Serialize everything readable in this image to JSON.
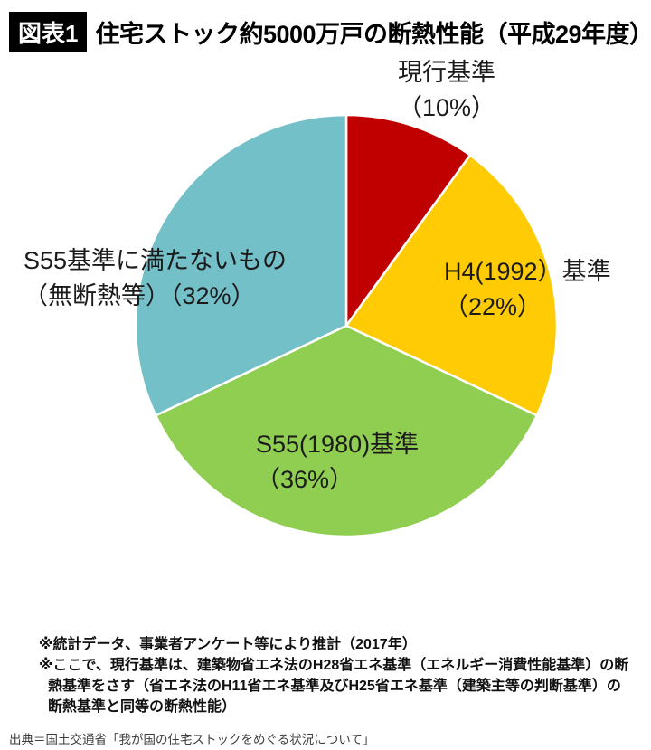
{
  "header": {
    "figure_label": "図表1",
    "title": "住宅ストック約5000万戸の断熱性能（平成29年度）"
  },
  "chart_data": {
    "type": "pie",
    "title": "住宅ストック約5000万戸の断熱性能（平成29年度）",
    "unit": "percent",
    "total_percent": 100,
    "start_angle_deg": 0,
    "direction": "clockwise",
    "slices": [
      {
        "id": "current-standard",
        "label": "現行基準",
        "value": 10,
        "color": "#c00000",
        "label_lines": [
          "現行基準",
          "（10%）"
        ]
      },
      {
        "id": "h4-1992-standard",
        "label": "H4(1992）基準",
        "value": 22,
        "color": "#ffcb05",
        "label_lines": [
          "H4(1992）基準",
          "（22%）"
        ]
      },
      {
        "id": "s55-1980-standard",
        "label": "S55(1980)基準",
        "value": 36,
        "color": "#8fce50",
        "label_lines": [
          "S55(1980)基準",
          "（36%）"
        ]
      },
      {
        "id": "below-s55-standard",
        "label": "S55基準に満たないもの（無断熱等）",
        "value": 32,
        "color": "#74c0c8",
        "label_lines": [
          "S55基準に満たないもの",
          "（無断熱等）（32%）"
        ]
      }
    ],
    "stroke_color": "#ffffff"
  },
  "notes": {
    "lines": [
      "※統計データ、事業者アンケート等により推計（2017年）",
      "※ここで、現行基準は、建築物省エネ法のH28省エネ基準（エネルギー消費性能基準）の断",
      "熱基準をさす（省エネ法のH11省エネ基準及びH25省エネ基準（建築主等の判断基準）の",
      "断熱基準と同等の断熱性能）"
    ]
  },
  "source": "出典＝国土交通省「我が国の住宅ストックをめぐる状況について」"
}
